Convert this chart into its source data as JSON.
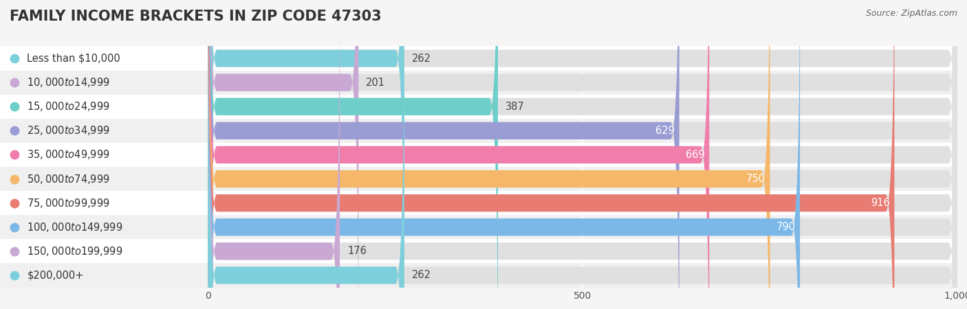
{
  "title": "FAMILY INCOME BRACKETS IN ZIP CODE 47303",
  "source": "Source: ZipAtlas.com",
  "categories": [
    "Less than $10,000",
    "$10,000 to $14,999",
    "$15,000 to $24,999",
    "$25,000 to $34,999",
    "$35,000 to $49,999",
    "$50,000 to $74,999",
    "$75,000 to $99,999",
    "$100,000 to $149,999",
    "$150,000 to $199,999",
    "$200,000+"
  ],
  "values": [
    262,
    201,
    387,
    629,
    669,
    750,
    916,
    790,
    176,
    262
  ],
  "bar_colors": [
    "#7ECFDC",
    "#C9A8D4",
    "#6ECFCA",
    "#9A9DD4",
    "#F07DAA",
    "#F5B76A",
    "#E87C72",
    "#7BB8E8",
    "#C9A8D4",
    "#7ECFDC"
  ],
  "row_bg_colors": [
    "#ffffff",
    "#f0f0f0"
  ],
  "xlim": [
    0,
    1000
  ],
  "xticks": [
    0,
    500,
    1000
  ],
  "background_color": "#f5f5f5",
  "bar_bg_color": "#e0e0e0",
  "title_fontsize": 15,
  "label_fontsize": 10.5,
  "value_fontsize": 10.5,
  "bar_height": 0.72,
  "value_threshold": 400
}
